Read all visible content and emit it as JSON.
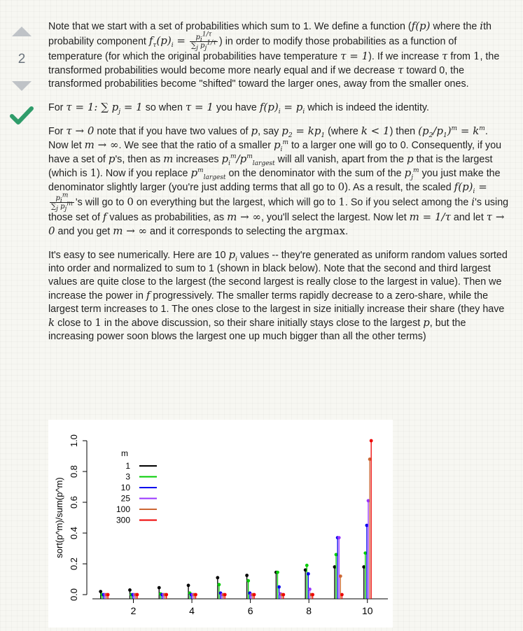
{
  "vote": {
    "count": "2"
  },
  "answer": {
    "p1": {
      "a": "Note that we start with a set of probabilities which sum to 1. We define a function (",
      "b": " where the",
      "c": "th probability component ",
      "d": ") in order to modify those probabilities as a function of temperature (for which the original probabilities have temperature ",
      "e": "). If we increase ",
      "f": " from ",
      "g": ", the transformed probabilities would become more nearly equal and if we decrease ",
      "h": " toward 0, the transformed probabilities become \"shifted\" toward the larger ones, away from the smaller ones."
    },
    "p2": {
      "a": "For ",
      "b": " so when ",
      "c": " you have ",
      "d": " which is indeed the identity."
    },
    "p3": {
      "a": "For ",
      "b": " note that if you have two values of ",
      "c": ", say ",
      "d": " (where ",
      "e": ") then ",
      "f": ". Now let ",
      "g": ". We see that the ratio of a smaller ",
      "h": " to a larger one will go to 0. Consequently, if you have a set of ",
      "i": "'s, then as ",
      "j": " increases ",
      "k": " will all vanish, apart from the ",
      "l": " that is the largest (which is ",
      "m": "). Now if you replace ",
      "n": " on the denominator with the sum of the ",
      "o": " you just make the denominator slightly larger (you're just adding terms that all go to ",
      "p": "). As a result, the scaled ",
      "q": "'s will go to ",
      "r": " on everything but the largest, which will go to ",
      "s": ". So if you select among the ",
      "t": "'s using those set of ",
      "u": " values as probabilities, as ",
      "v": ", you'll select the largest. Now let ",
      "w": " and let ",
      "x": " and you get ",
      "y": " and it corresponds to selecting the ",
      "z": "."
    },
    "p4": {
      "a": "It's easy to see numerically. Here are 10 ",
      "b": " values -- they're generated as uniform random values sorted into order and normalized to sum to 1 (shown in black below). Note that the second and third largest values are quite close to the largest (the second largest is really close to the largest in value). Then we increase the power in ",
      "c": " progressively. The smaller terms rapidly decrease to a zero-share, while the largest term increases to 1. The ones close to the largest in size initially increase their share (they have ",
      "d": " close to ",
      "e": " in the above discussion, so their share initially stays close to the largest ",
      "f": ", but the increasing power soon blows the largest one up much bigger than all the other terms)"
    },
    "math": {
      "f_of_p": "f(p)",
      "i": "i",
      "f_tau_i": "f",
      "tau_eq_1": "τ = 1",
      "tau": "τ",
      "one": "1",
      "sum_pj": "∑ p",
      "eq1": " = 1",
      "f_i": "f(p)",
      "eq_pi": " = p",
      "tau_to_0": "τ → 0",
      "p": "p",
      "p2": "p",
      "kp1": " = kp",
      "k_lt_1": "k < 1",
      "ratio": "(p₂/p₁)",
      "km": " = k",
      "m_to_inf": "m → ∞",
      "largest": "largest",
      "zero": "0",
      "argmax": "argmax",
      "m_eq": "m = 1/τ",
      "k": "k",
      "m": "m",
      "inf": "∞",
      "pi": "p",
      "frac_num": "p",
      "frac_den": "∑",
      "frac_num_exp": "1/τ",
      "frac_den_exp": "1/τ"
    }
  },
  "colors": {
    "black": "#000000",
    "green": "#00cc00",
    "blue": "#0000ee",
    "purple": "#9933ff",
    "orange": "#cc6633",
    "red": "#ee0000"
  },
  "chart_data": {
    "type": "scatter",
    "title": "",
    "xlabel": "",
    "ylabel": "sort(p^m)/sum(p^m)",
    "xlim": [
      0.6,
      10.7
    ],
    "ylim": [
      0,
      1.0
    ],
    "xticks": [
      2,
      4,
      6,
      8,
      10
    ],
    "yticks": [
      "0.0",
      "0.2",
      "0.4",
      "0.6",
      "0.8",
      "1.0"
    ],
    "legend": {
      "title": "m",
      "position": "top-left",
      "entries": [
        "1",
        "3",
        "10",
        "25",
        "100",
        "300"
      ]
    },
    "x": [
      1,
      2,
      3,
      4,
      5,
      6,
      7,
      8,
      9,
      10
    ],
    "series": [
      {
        "name": "1",
        "color": "#000000",
        "values": [
          0.02,
          0.03,
          0.045,
          0.06,
          0.11,
          0.125,
          0.145,
          0.16,
          0.18,
          0.18
        ]
      },
      {
        "name": "3",
        "color": "#00cc00",
        "values": [
          0.0,
          0.0,
          0.005,
          0.01,
          0.065,
          0.09,
          0.145,
          0.19,
          0.26,
          0.27
        ]
      },
      {
        "name": "10",
        "color": "#0000ee",
        "values": [
          0.0,
          0.0,
          0.0,
          0.0,
          0.01,
          0.01,
          0.05,
          0.135,
          0.37,
          0.45
        ]
      },
      {
        "name": "25",
        "color": "#9933ff",
        "values": [
          0.0,
          0.0,
          0.0,
          0.0,
          0.0,
          0.0,
          0.005,
          0.035,
          0.37,
          0.61
        ]
      },
      {
        "name": "100",
        "color": "#cc6633",
        "values": [
          0.0,
          0.0,
          0.0,
          0.0,
          0.0,
          0.0,
          0.0,
          0.0,
          0.12,
          0.88
        ]
      },
      {
        "name": "300",
        "color": "#ee0000",
        "values": [
          0.0,
          0.0,
          0.0,
          0.0,
          0.0,
          0.0,
          0.0,
          0.0,
          0.0,
          1.0
        ]
      }
    ]
  }
}
